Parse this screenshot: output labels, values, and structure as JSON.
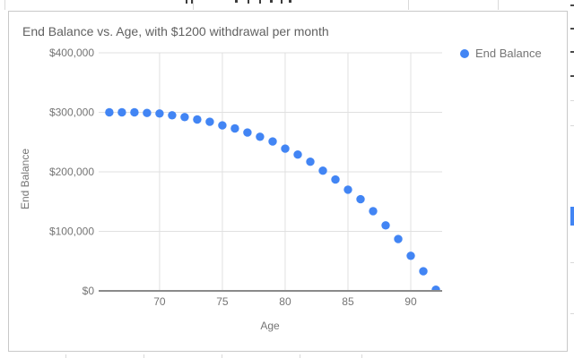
{
  "chart_data": {
    "type": "scatter",
    "title": "End Balance vs. Age, with $1200 withdrawal per month",
    "xlabel": "Age",
    "ylabel": "End Balance",
    "legend_position": "right",
    "grid": true,
    "xlim": [
      65.15,
      92.5
    ],
    "ylim": [
      0,
      400000
    ],
    "xticks": [
      70,
      75,
      80,
      85,
      90
    ],
    "ytick_values": [
      0,
      100000,
      200000,
      300000,
      400000
    ],
    "ytick_labels": [
      "$0",
      "$100,000",
      "$200,000",
      "$300,000",
      "$400,000"
    ],
    "series": [
      {
        "name": "End Balance",
        "color": "#4285F4",
        "x": [
          66,
          67,
          68,
          69,
          70,
          71,
          72,
          73,
          74,
          75,
          76,
          77,
          78,
          79,
          80,
          81,
          82,
          83,
          84,
          85,
          86,
          87,
          88,
          89,
          90,
          91,
          92
        ],
        "y": [
          300000,
          300000,
          300000,
          299000,
          298000,
          295000,
          292000,
          288000,
          284000,
          278000,
          273000,
          266000,
          259000,
          251000,
          239000,
          229000,
          217000,
          202000,
          187000,
          170000,
          154000,
          134000,
          110000,
          87000,
          59000,
          33000,
          2000
        ]
      }
    ]
  },
  "colors": {
    "accent_blue": "#4285F4",
    "title_text": "#616161",
    "axis_text": "#757575",
    "gridline": "#e0e0e0",
    "axis_line": "#8a8a8a",
    "card_border": "#c9c9c9",
    "sheet_gridline": "#d9d9d9"
  }
}
